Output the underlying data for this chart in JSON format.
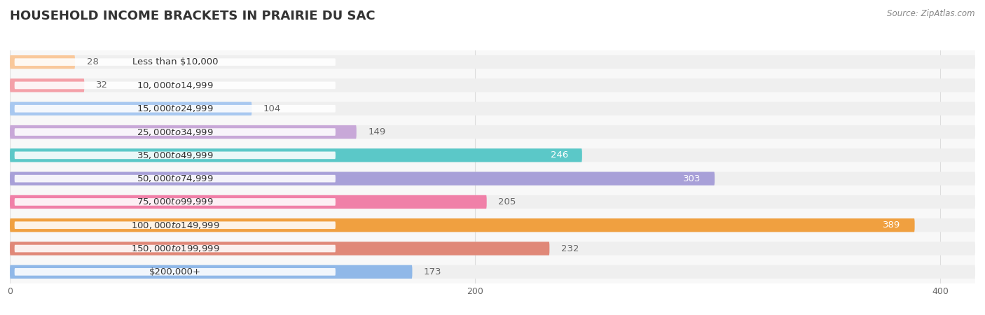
{
  "title": "HOUSEHOLD INCOME BRACKETS IN PRAIRIE DU SAC",
  "source": "Source: ZipAtlas.com",
  "categories": [
    "Less than $10,000",
    "$10,000 to $14,999",
    "$15,000 to $24,999",
    "$25,000 to $34,999",
    "$35,000 to $49,999",
    "$50,000 to $74,999",
    "$75,000 to $99,999",
    "$100,000 to $149,999",
    "$150,000 to $199,999",
    "$200,000+"
  ],
  "values": [
    28,
    32,
    104,
    149,
    246,
    303,
    205,
    389,
    232,
    173
  ],
  "bar_colors": [
    "#f9c89b",
    "#f4a0a8",
    "#a8c8f0",
    "#c8a8d8",
    "#5bc8c8",
    "#a8a0d8",
    "#f080a8",
    "#f0a040",
    "#e08878",
    "#90b8e8"
  ],
  "value_inside": [
    false,
    false,
    false,
    false,
    true,
    true,
    false,
    true,
    false,
    false
  ],
  "xlim": [
    0,
    415
  ],
  "xticks": [
    0,
    200,
    400
  ],
  "title_fontsize": 13,
  "label_fontsize": 9.5,
  "value_fontsize": 9.5,
  "background_color": "#ffffff",
  "track_color": "#efefef",
  "row_bg_color": "#f8f8f8"
}
